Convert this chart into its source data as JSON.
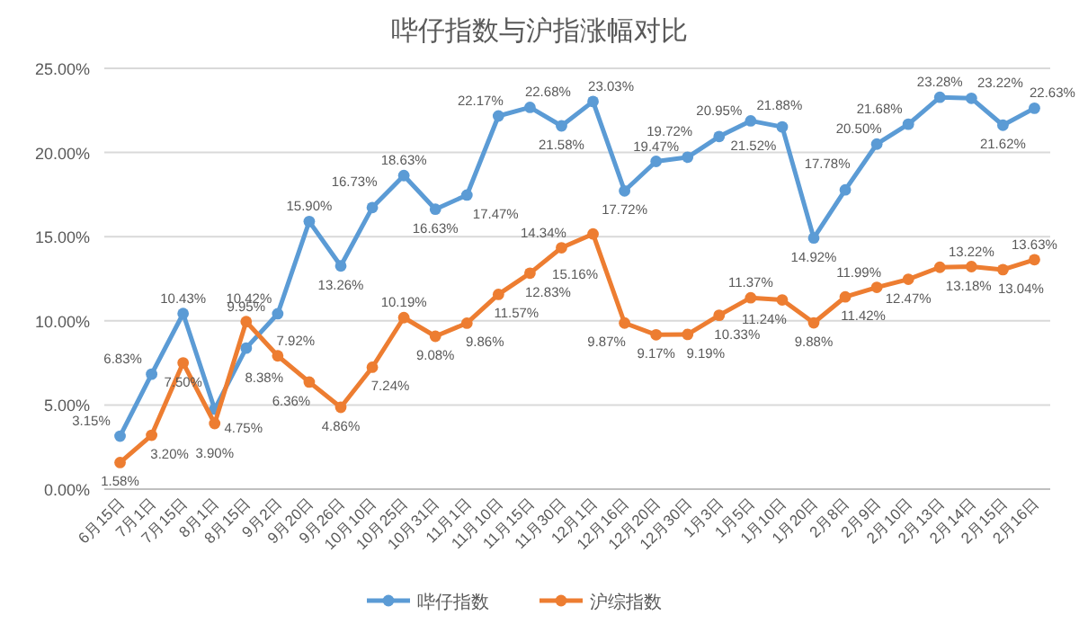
{
  "chart_data": {
    "type": "line",
    "title": "哔仔指数与沪指涨幅对比",
    "categories": [
      "6月15日",
      "7月1日",
      "7月15日",
      "8月1日",
      "8月15日",
      "9月2日",
      "9月20日",
      "9月26日",
      "10月10日",
      "10月25日",
      "10月31日",
      "11月1日",
      "11月10日",
      "11月15日",
      "11月30日",
      "12月1日",
      "12月16日",
      "12月20日",
      "12月30日",
      "1月3日",
      "1月5日",
      "1月10日",
      "1月20日",
      "2月8日",
      "2月9日",
      "2月10日",
      "2月13日",
      "2月14日",
      "2月15日",
      "2月16日"
    ],
    "series": [
      {
        "name": "哔仔指数",
        "color": "#5b9bd5",
        "values": [
          3.15,
          6.83,
          10.43,
          4.75,
          8.38,
          10.42,
          15.9,
          13.26,
          16.73,
          18.63,
          16.63,
          17.47,
          22.17,
          22.68,
          21.58,
          23.03,
          17.72,
          19.47,
          19.72,
          20.95,
          21.88,
          21.52,
          14.92,
          17.78,
          20.5,
          21.68,
          23.28,
          23.22,
          21.62,
          22.63
        ],
        "value_labels": [
          "3.15%",
          "6.83%",
          "10.43%",
          "4.75%",
          "8.38%",
          "10.42%",
          "15.90%",
          "13.26%",
          "16.73%",
          "18.63%",
          "16.63%",
          "17.47%",
          "22.17%",
          "22.68%",
          "21.58%",
          "23.03%",
          "17.72%",
          "19.47%",
          "19.72%",
          "20.95%",
          "21.88%",
          "21.52%",
          "14.92%",
          "17.78%",
          "20.50%",
          "21.68%",
          "23.28%",
          "23.22%",
          "21.62%",
          "22.63%"
        ]
      },
      {
        "name": "沪综指数",
        "color": "#ed7d31",
        "values": [
          1.58,
          3.2,
          7.5,
          3.9,
          9.95,
          7.92,
          6.36,
          4.86,
          7.24,
          10.19,
          9.08,
          9.86,
          11.57,
          12.83,
          14.34,
          15.16,
          9.87,
          9.17,
          9.19,
          10.33,
          11.37,
          11.24,
          9.88,
          11.42,
          11.99,
          12.47,
          13.18,
          13.22,
          13.04,
          13.63
        ],
        "value_labels": [
          "1.58%",
          "3.20%",
          "7.50%",
          "3.90%",
          "9.95%",
          "7.92%",
          "6.36%",
          "4.86%",
          "7.24%",
          "10.19%",
          "9.08%",
          "9.86%",
          "11.57%",
          "12.83%",
          "14.34%",
          "15.16%",
          "9.87%",
          "9.17%",
          "9.19%",
          "10.33%",
          "11.37%",
          "11.24%",
          "9.88%",
          "11.42%",
          "11.99%",
          "12.47%",
          "13.18%",
          "13.22%",
          "13.04%",
          "13.63%"
        ]
      }
    ],
    "ylim": [
      0,
      25
    ],
    "yticks": [
      {
        "value": 0,
        "label": "0.00%"
      },
      {
        "value": 5,
        "label": "5.00%"
      },
      {
        "value": 10,
        "label": "10.00%"
      },
      {
        "value": 15,
        "label": "15.00%"
      },
      {
        "value": 20,
        "label": "20.00%"
      },
      {
        "value": 25,
        "label": "25.00%"
      }
    ],
    "grid": "y",
    "legend": "bottom",
    "marker": "circle",
    "line_style": "solid"
  }
}
